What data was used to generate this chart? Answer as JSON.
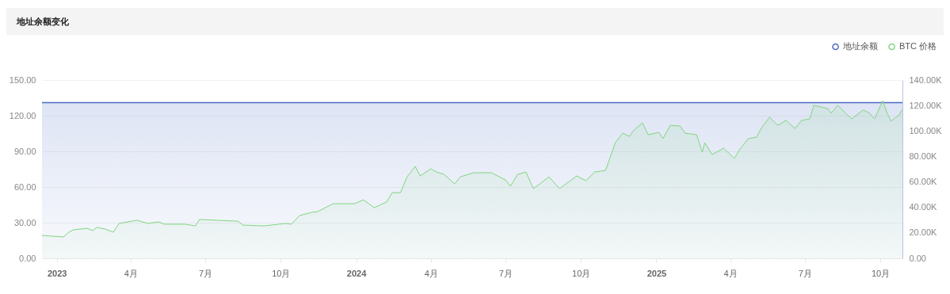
{
  "chart_data": {
    "type": "area",
    "title": "地址余额变化",
    "legend": "top right",
    "grid": "y",
    "xlim": [
      "2022-12-14",
      "2025-10-28"
    ],
    "xticks": [
      {
        "value": "2023-01-01",
        "label": "2023"
      },
      {
        "value": "2023-04-01",
        "label": "4月"
      },
      {
        "value": "2023-07-01",
        "label": "7月"
      },
      {
        "value": "2023-10-01",
        "label": "10月"
      },
      {
        "value": "2024-01-01",
        "label": "2024"
      },
      {
        "value": "2024-04-01",
        "label": "4月"
      },
      {
        "value": "2024-07-01",
        "label": "7月"
      },
      {
        "value": "2024-10-01",
        "label": "10月"
      },
      {
        "value": "2025-01-01",
        "label": "2025"
      },
      {
        "value": "2025-04-01",
        "label": "4月"
      },
      {
        "value": "2025-07-01",
        "label": "7月"
      },
      {
        "value": "2025-10-01",
        "label": "10月"
      }
    ],
    "ylim": [
      0,
      150
    ],
    "yticks": [
      {
        "value": 0,
        "label": "0.00"
      },
      {
        "value": 30,
        "label": "30.00"
      },
      {
        "value": 60,
        "label": "60.00"
      },
      {
        "value": 90,
        "label": "90.00"
      },
      {
        "value": 120,
        "label": "120.00"
      },
      {
        "value": 150,
        "label": "150.00"
      }
    ],
    "y2lim": [
      0,
      140000
    ],
    "y2ticks": [
      {
        "value": 0,
        "label": "0.00"
      },
      {
        "value": 20000,
        "label": "20.00K"
      },
      {
        "value": 40000,
        "label": "40.00K"
      },
      {
        "value": 60000,
        "label": "60.00K"
      },
      {
        "value": 80000,
        "label": "80.00K"
      },
      {
        "value": 100000,
        "label": "100.00K"
      },
      {
        "value": 120000,
        "label": "120.00K"
      },
      {
        "value": 140000,
        "label": "140.00K"
      }
    ],
    "series": [
      {
        "name": "地址余额",
        "color": "#4a6bc4",
        "x": [
          "2022-12-14",
          "2025-10-28"
        ],
        "values": [
          131,
          131
        ]
      },
      {
        "name": "BTC 价格",
        "color": "#7fd67f",
        "axis": "y2",
        "x": [
          "2022-12-14",
          "2023-01-09",
          "2023-01-16",
          "2023-01-21",
          "2023-02-07",
          "2023-02-14",
          "2023-02-19",
          "2023-03-01",
          "2023-03-11",
          "2023-03-18",
          "2023-04-09",
          "2023-04-22",
          "2023-05-05",
          "2023-05-12",
          "2023-06-06",
          "2023-06-19",
          "2023-06-24",
          "2023-07-15",
          "2023-08-10",
          "2023-08-16",
          "2023-09-11",
          "2023-10-07",
          "2023-10-14",
          "2023-10-24",
          "2023-11-08",
          "2023-11-15",
          "2023-12-04",
          "2023-12-30",
          "2024-01-10",
          "2024-01-23",
          "2024-02-07",
          "2024-02-14",
          "2024-02-24",
          "2024-03-03",
          "2024-03-13",
          "2024-03-19",
          "2024-04-01",
          "2024-04-08",
          "2024-04-17",
          "2024-04-30",
          "2024-05-07",
          "2024-05-23",
          "2024-06-14",
          "2024-07-01",
          "2024-07-07",
          "2024-07-16",
          "2024-07-26",
          "2024-08-04",
          "2024-08-12",
          "2024-08-23",
          "2024-09-05",
          "2024-09-26",
          "2024-10-07",
          "2024-10-18",
          "2024-10-31",
          "2024-11-12",
          "2024-11-21",
          "2024-11-29",
          "2024-12-04",
          "2024-12-15",
          "2024-12-22",
          "2025-01-04",
          "2025-01-09",
          "2025-01-18",
          "2025-01-30",
          "2025-02-05",
          "2025-02-19",
          "2025-02-26",
          "2025-03-01",
          "2025-03-10",
          "2025-03-24",
          "2025-04-06",
          "2025-04-13",
          "2025-04-23",
          "2025-05-03",
          "2025-05-10",
          "2025-05-19",
          "2025-05-29",
          "2025-06-08",
          "2025-06-19",
          "2025-06-27",
          "2025-07-07",
          "2025-07-12",
          "2025-07-29",
          "2025-08-02",
          "2025-08-10",
          "2025-08-27",
          "2025-09-10",
          "2025-09-17",
          "2025-09-24",
          "2025-10-04",
          "2025-10-09",
          "2025-10-14",
          "2025-10-24",
          "2025-10-28"
        ],
        "values": [
          18000,
          16800,
          20500,
          22400,
          23600,
          21800,
          24300,
          23000,
          20500,
          27400,
          29900,
          27400,
          28600,
          26800,
          26800,
          25500,
          30500,
          29900,
          29200,
          26100,
          25500,
          27400,
          26800,
          33600,
          36100,
          36700,
          42900,
          42900,
          46000,
          39800,
          44200,
          51600,
          51600,
          64000,
          72200,
          64700,
          70300,
          67800,
          66000,
          58500,
          64000,
          67200,
          67200,
          61600,
          56600,
          66000,
          67800,
          54800,
          58500,
          64000,
          54800,
          64700,
          61000,
          67800,
          69000,
          90800,
          98300,
          95800,
          100200,
          106400,
          97000,
          99000,
          94000,
          104500,
          103900,
          98300,
          97000,
          83400,
          90800,
          81500,
          86500,
          78400,
          85900,
          94000,
          95200,
          103300,
          110800,
          104500,
          108300,
          102000,
          108300,
          109500,
          120100,
          117600,
          113900,
          120100,
          109500,
          116400,
          114500,
          109500,
          123800,
          114500,
          107700,
          112600,
          117000
        ]
      }
    ]
  }
}
